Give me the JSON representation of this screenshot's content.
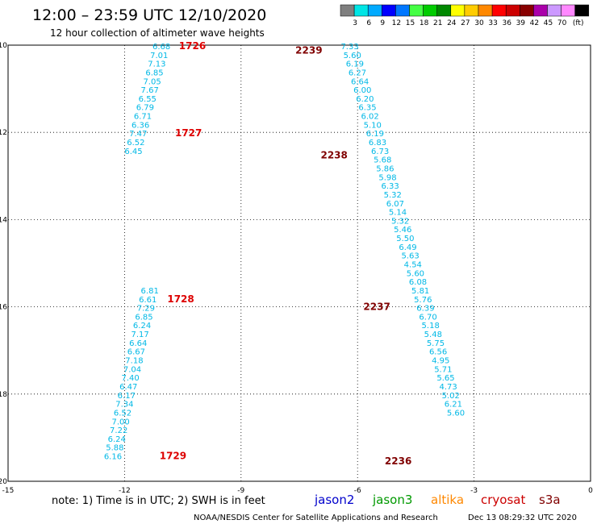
{
  "header": {
    "title": "12:00 – 23:59 UTC 12/10/2020",
    "subtitle": "12 hour collection of altimeter wave heights"
  },
  "color_scale": {
    "colors": [
      "#7f7f7f",
      "#00e5e5",
      "#00aaff",
      "#0000ff",
      "#0077ff",
      "#44ff44",
      "#00cc00",
      "#008800",
      "#ffff00",
      "#ffcc00",
      "#ff8800",
      "#ff0000",
      "#cc0000",
      "#880000",
      "#aa00aa",
      "#cc99ff",
      "#ff88ff",
      "#000000"
    ],
    "labels": [
      "3",
      "6",
      "9",
      "12",
      "15",
      "18",
      "21",
      "24",
      "27",
      "30",
      "33",
      "36",
      "39",
      "42",
      "45",
      "70"
    ],
    "unit": "(ft)"
  },
  "axes": {
    "x_ticks": [
      "-15",
      "-12",
      "-9",
      "-6",
      "-3",
      "0"
    ],
    "y_ticks": [
      "-10",
      "-12",
      "-14",
      "-16",
      "-18",
      "-20"
    ]
  },
  "tracks": [
    {
      "lon": -11.05,
      "lat_start": -10.0,
      "lat_step": 0.2,
      "color": "#00b8e6",
      "values": [
        "6.68",
        "7.01",
        "7.13",
        "6.85",
        "7.05",
        "7.67",
        "6.55",
        "6.79",
        "6.71",
        "6.36",
        "7.47",
        "6.52",
        "6.45"
      ]
    },
    {
      "lon": -11.35,
      "lat_start": -15.6,
      "lat_step": 0.2,
      "color": "#00b8e6",
      "values": [
        "6.81",
        "6.61",
        "7.29",
        "6.85",
        "6.24",
        "7.17",
        "6.64",
        "6.67",
        "7.18",
        "7.04",
        "7.40",
        "6.47",
        "6.17",
        "7.34",
        "6.52",
        "7.00",
        "7.22",
        "6.24",
        "5.88",
        "6.16"
      ]
    },
    {
      "lon": -6.2,
      "lat_start": -10.0,
      "lat_step": 0.2,
      "color": "#00b8e6",
      "values": [
        "7.33",
        "5.60",
        "6.19",
        "6.27",
        "6.64",
        "6.00",
        "6.20",
        "6.35",
        "6.02",
        "5.10",
        "6.19",
        "6.83",
        "6.73",
        "5.68",
        "5.86",
        "5.98",
        "6.33",
        "5.32",
        "6.07",
        "5.14",
        "5.32",
        "5.46",
        "5.50",
        "6.49",
        "5.63",
        "4.54",
        "5.60",
        "6.08",
        "5.81",
        "5.76",
        "6.39",
        "6.70",
        "5.18",
        "5.48",
        "5.75",
        "6.56",
        "4.95",
        "5.71",
        "5.65",
        "4.73",
        "5.02",
        "6.21",
        "5.60"
      ]
    }
  ],
  "time_labels": [
    {
      "text": "1726",
      "lon": -10.6,
      "lat": -10.0,
      "color": "#dd0000"
    },
    {
      "text": "1727",
      "lon": -10.7,
      "lat": -12.0,
      "color": "#dd0000"
    },
    {
      "text": "1728",
      "lon": -10.9,
      "lat": -15.8,
      "color": "#dd0000"
    },
    {
      "text": "1729",
      "lon": -11.1,
      "lat": -19.4,
      "color": "#dd0000"
    },
    {
      "text": "2239",
      "lon": -7.6,
      "lat": -10.1,
      "color": "#800000"
    },
    {
      "text": "2238",
      "lon": -6.95,
      "lat": -12.5,
      "color": "#800000"
    },
    {
      "text": "2237",
      "lon": -5.85,
      "lat": -15.98,
      "color": "#800000"
    },
    {
      "text": "2236",
      "lon": -5.3,
      "lat": -19.52,
      "color": "#800000"
    }
  ],
  "footer": {
    "note": "note:  1) Time is in UTC; 2) SWH is in feet",
    "legend": [
      {
        "name": "jason2",
        "color": "#0000cc"
      },
      {
        "name": "jason3",
        "color": "#009900"
      },
      {
        "name": "altika",
        "color": "#ff8800"
      },
      {
        "name": "cryosat",
        "color": "#cc0000"
      },
      {
        "name": "s3a",
        "color": "#800000"
      }
    ],
    "credit": "NOAA/NESDIS Center for Satellite Applications and Research",
    "timestamp": "Dec 13 08:29:32 UTC 2020"
  }
}
